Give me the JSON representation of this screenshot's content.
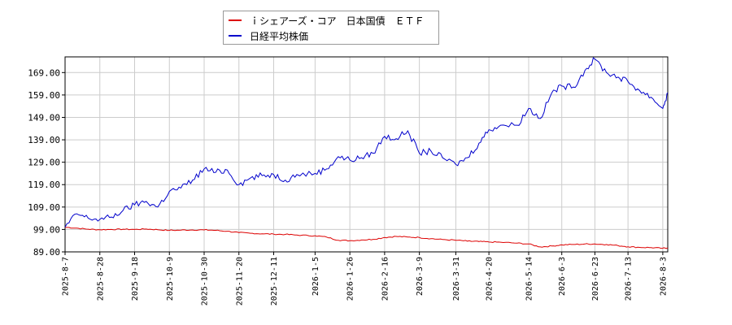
{
  "chart_data": {
    "type": "line",
    "title": "",
    "xlabel": "",
    "ylabel": "",
    "ylim": [
      89,
      176
    ],
    "grid": true,
    "legend_position": "top-center",
    "y_ticks": [
      "89.00",
      "99.00",
      "109.00",
      "119.00",
      "129.00",
      "139.00",
      "149.00",
      "159.00",
      "169.00"
    ],
    "x_ticks": [
      "2025-8-7",
      "2025-8-28",
      "2025-9-18",
      "2025-10-9",
      "2025-10-30",
      "2025-11-20",
      "2025-12-11",
      "2026-1-5",
      "2026-1-26",
      "2026-2-16",
      "2026-3-9",
      "2026-3-31",
      "2026-4-20",
      "2026-5-14",
      "2026-6-3",
      "2026-6-23",
      "2026-7-13",
      "2026-8-3"
    ],
    "x": [
      "2025-8-7",
      "2025-8-14",
      "2025-8-21",
      "2025-8-28",
      "2025-9-4",
      "2025-9-11",
      "2025-9-18",
      "2025-9-25",
      "2025-10-2",
      "2025-10-9",
      "2025-10-16",
      "2025-10-23",
      "2025-10-30",
      "2025-11-6",
      "2025-11-13",
      "2025-11-20",
      "2025-11-27",
      "2025-12-4",
      "2025-12-11",
      "2025-12-18",
      "2025-12-25",
      "2026-1-5",
      "2026-1-12",
      "2026-1-19",
      "2026-1-26",
      "2026-2-2",
      "2026-2-9",
      "2026-2-16",
      "2026-2-23",
      "2026-3-2",
      "2026-3-9",
      "2026-3-16",
      "2026-3-23",
      "2026-3-31",
      "2026-4-7",
      "2026-4-14",
      "2026-4-20",
      "2026-4-27",
      "2026-5-7",
      "2026-5-14",
      "2026-5-21",
      "2026-5-28",
      "2026-6-3",
      "2026-6-10",
      "2026-6-17",
      "2026-6-23",
      "2026-6-30",
      "2026-7-7",
      "2026-7-13",
      "2026-7-20",
      "2026-7-27",
      "2026-8-3",
      "2026-8-6"
    ],
    "series": [
      {
        "name": "ｉシェアーズ・コア　日本国債　ＥＴＦ",
        "color": "#dd0000",
        "values": [
          100.0,
          99.6,
          99.1,
          98.9,
          99.0,
          99.1,
          99.0,
          99.2,
          98.9,
          98.6,
          98.7,
          98.8,
          98.8,
          98.6,
          98.2,
          97.6,
          97.3,
          97.1,
          96.9,
          96.8,
          96.5,
          96.2,
          95.6,
          94.2,
          94.0,
          94.3,
          94.6,
          95.4,
          95.9,
          95.6,
          95.4,
          94.9,
          94.5,
          94.2,
          93.8,
          93.6,
          93.4,
          93.3,
          92.9,
          92.5,
          91.2,
          91.6,
          92.1,
          92.3,
          92.5,
          92.5,
          92.3,
          91.8,
          91.3,
          91.0,
          90.9,
          90.6,
          90.8
        ]
      },
      {
        "name": "日経平均株価",
        "color": "#0000cc",
        "values": [
          100.0,
          106.0,
          104.0,
          103.5,
          104.5,
          107.5,
          110.0,
          111.5,
          109.0,
          116.0,
          117.5,
          121.0,
          126.0,
          124.5,
          125.5,
          119.0,
          122.0,
          123.0,
          123.5,
          121.0,
          123.5,
          124.0,
          126.0,
          131.5,
          130.0,
          131.0,
          133.0,
          140.5,
          139.5,
          143.0,
          133.0,
          134.0,
          131.0,
          128.0,
          131.0,
          137.5,
          143.5,
          145.5,
          145.5,
          153.0,
          148.5,
          160.0,
          163.0,
          162.5,
          170.0,
          175.0,
          169.0,
          167.0,
          165.0,
          161.0,
          158.0,
          153.0,
          160.0
        ]
      }
    ]
  }
}
